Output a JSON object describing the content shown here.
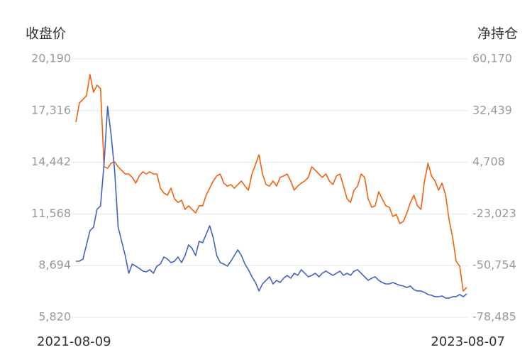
{
  "chart_data": {
    "type": "line",
    "y_label": "收盘价",
    "y2_label": "净持仓",
    "categories": [
      "2021-08-09",
      null,
      null,
      null,
      null,
      null,
      null,
      null,
      null,
      null,
      null,
      null,
      null,
      null,
      null,
      null,
      null,
      null,
      null,
      null,
      null,
      null,
      null,
      null,
      null,
      null,
      null,
      null,
      null,
      null,
      null,
      null,
      null,
      null,
      null,
      null,
      null,
      null,
      null,
      null,
      null,
      null,
      null,
      null,
      null,
      null,
      null,
      null,
      null,
      null,
      null,
      null,
      null,
      null,
      null,
      null,
      null,
      null,
      null,
      null,
      null,
      null,
      null,
      null,
      null,
      null,
      null,
      null,
      null,
      null,
      null,
      null,
      null,
      null,
      null,
      null,
      null,
      null,
      null,
      null,
      null,
      null,
      null,
      null,
      null,
      null,
      null,
      null,
      null,
      null,
      null,
      null,
      null,
      null,
      null,
      null,
      null,
      null,
      null,
      null,
      null,
      null,
      null,
      null,
      null,
      null,
      null,
      null,
      null,
      null,
      null,
      "2023-08-07"
    ],
    "series": [
      {
        "color": "#f4600c",
        "values": [
          16680,
          17740,
          17940,
          18140,
          19320,
          18330,
          18730,
          18530,
          14190,
          14110,
          14390,
          14470,
          14190,
          13990,
          13790,
          13790,
          13600,
          13280,
          13680,
          13910,
          13790,
          13910,
          13790,
          13790,
          13000,
          12730,
          12610,
          13000,
          12410,
          12210,
          12330,
          11820,
          12020,
          11820,
          11620,
          12020,
          12020,
          12610,
          13000,
          13400,
          13680,
          13790,
          13280,
          13120,
          13200,
          13000,
          13200,
          13400,
          13120,
          12890,
          13790,
          14310,
          14860,
          13790,
          13200,
          13120,
          13400,
          13120,
          13600,
          13680,
          13790,
          13400,
          12890,
          13120,
          13280,
          13400,
          13600,
          14190,
          13990,
          13790,
          13600,
          13790,
          13400,
          13200,
          13680,
          13790,
          13120,
          12410,
          12210,
          12890,
          13120,
          13790,
          13600,
          12410,
          11940,
          12020,
          12810,
          12410,
          12020,
          11940,
          11430,
          11540,
          11030,
          11150,
          11620,
          12210,
          12610,
          12020,
          11820,
          13400,
          14390,
          13680,
          13400,
          12890,
          13280,
          12610,
          11230,
          10240,
          8940,
          8660,
          7280,
          7480
        ]
      },
      {
        "color": "#4262c2",
        "axis": "y2",
        "values": [
          -48390,
          -48390,
          -47240,
          -39630,
          -32010,
          -30100,
          -20580,
          -18680,
          4180,
          34650,
          19410,
          370,
          -30100,
          -37720,
          -45340,
          -54860,
          -49910,
          -51050,
          -52200,
          -53720,
          -54100,
          -52960,
          -54860,
          -51050,
          -49910,
          -46100,
          -47240,
          -49150,
          -48390,
          -46100,
          -49150,
          -45340,
          -39630,
          -41530,
          -45340,
          -37720,
          -38480,
          -33910,
          -29340,
          -35820,
          -45340,
          -49150,
          -49910,
          -51050,
          -48390,
          -45340,
          -42290,
          -45340,
          -49910,
          -52960,
          -56770,
          -59810,
          -64380,
          -60580,
          -58670,
          -56770,
          -60580,
          -58670,
          -59810,
          -57530,
          -56000,
          -57530,
          -54860,
          -56000,
          -52960,
          -54860,
          -56770,
          -56000,
          -54860,
          -56770,
          -54860,
          -53720,
          -54860,
          -56000,
          -54860,
          -53720,
          -56000,
          -54860,
          -56000,
          -53720,
          -52960,
          -54860,
          -56770,
          -58670,
          -57530,
          -56770,
          -58670,
          -59810,
          -60580,
          -60580,
          -59810,
          -60580,
          -61340,
          -61720,
          -62480,
          -61720,
          -63620,
          -64380,
          -64380,
          -65150,
          -66290,
          -66670,
          -67430,
          -67430,
          -67050,
          -68190,
          -68190,
          -67430,
          -67430,
          -66290,
          -67430,
          -65910
        ]
      }
    ],
    "ylim": [
      5820,
      20190
    ],
    "yticks": [
      {
        "value": 20190,
        "label": "20,190"
      },
      {
        "value": 17316,
        "label": "17,316"
      },
      {
        "value": 14442,
        "label": "14,442"
      },
      {
        "value": 11568,
        "label": "11,568"
      },
      {
        "value": 8694,
        "label": "8,694"
      },
      {
        "value": 5820,
        "label": "5,820"
      }
    ],
    "y2lim": [
      -78485,
      60170
    ],
    "y2ticks": [
      {
        "value": 60170,
        "label": "60,170"
      },
      {
        "value": 32439,
        "label": "32,439"
      },
      {
        "value": 4708,
        "label": "4,708"
      },
      {
        "value": -23023,
        "label": "-23,023"
      },
      {
        "value": -50754,
        "label": "-50,754"
      },
      {
        "value": -78485,
        "label": "-78,485"
      }
    ],
    "grid": true
  }
}
